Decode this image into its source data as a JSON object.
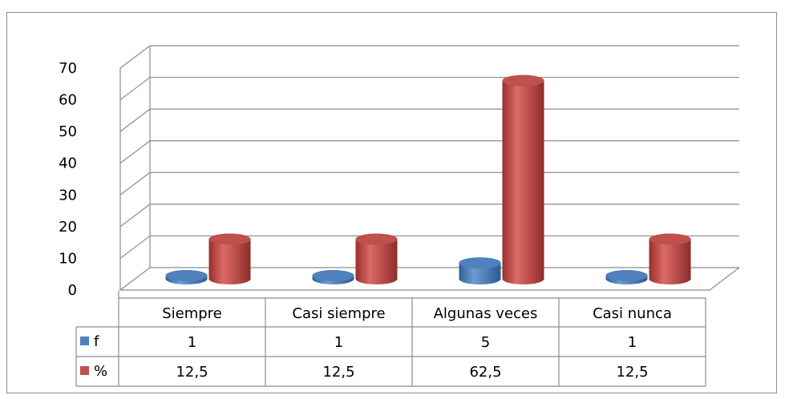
{
  "chart_data": {
    "type": "bar3d",
    "categories": [
      "Siempre",
      "Casi siempre",
      "Algunas veces",
      "Casi nunca"
    ],
    "series": [
      {
        "name": "f",
        "color": "#4f81bd",
        "values": [
          1,
          1,
          5,
          1
        ]
      },
      {
        "name": "%",
        "color": "#c0504d",
        "values": [
          12.5,
          12.5,
          62.5,
          12.5
        ],
        "value_labels": [
          "12,5",
          "12,5",
          "62,5",
          "12,5"
        ]
      }
    ],
    "ylim": [
      0,
      70
    ],
    "yticks": [
      0,
      10,
      20,
      30,
      40,
      50,
      60,
      70
    ],
    "grid": true
  }
}
